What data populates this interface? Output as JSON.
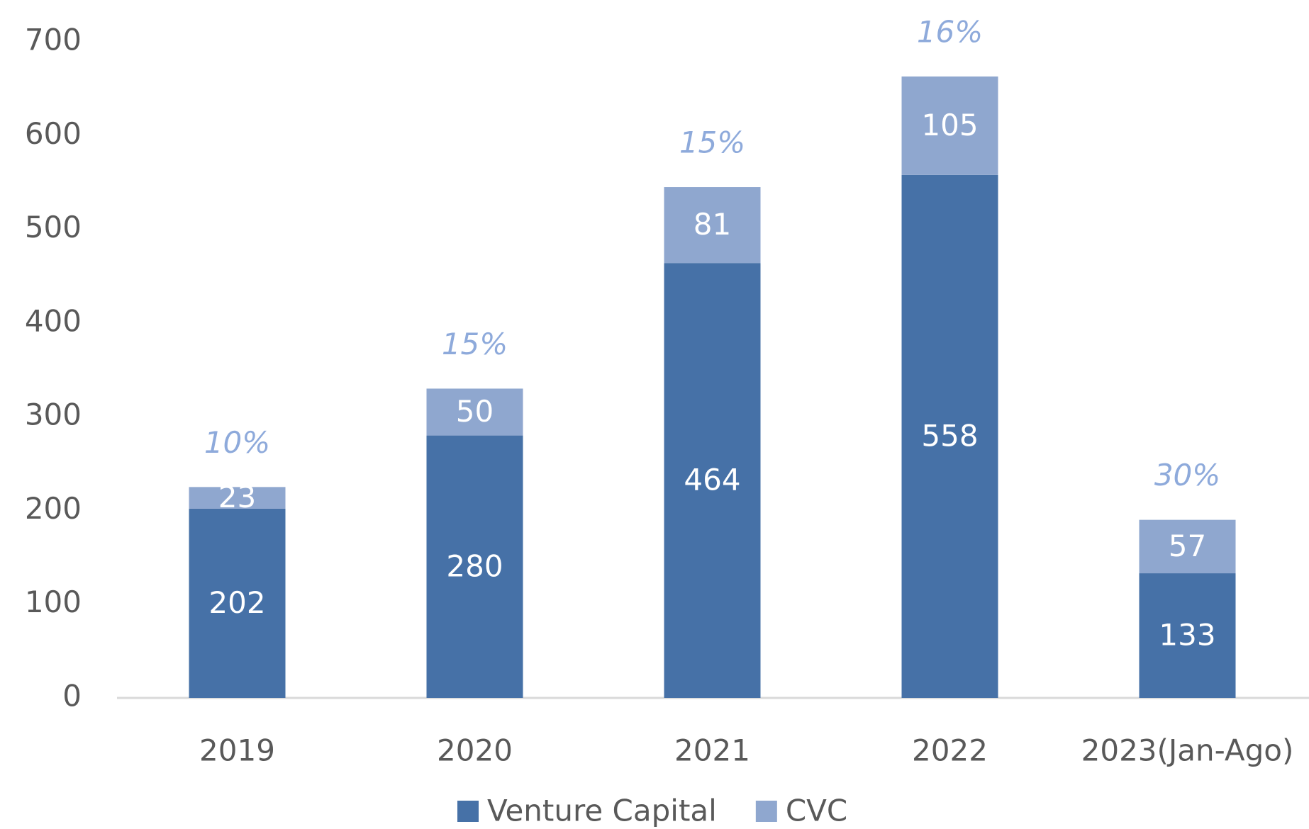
{
  "chart_data": {
    "type": "stacked_bar",
    "categories": [
      "2019",
      "2020",
      "2021",
      "2022",
      "2023(Jan-Ago)"
    ],
    "series": [
      {
        "name": "Venture Capital",
        "color": "#4671a7",
        "values": [
          202,
          280,
          464,
          558,
          133
        ]
      },
      {
        "name": "CVC",
        "color": "#8fa7cf",
        "values": [
          23,
          50,
          81,
          105,
          57
        ]
      }
    ],
    "annotations": [
      "10%",
      "15%",
      "15%",
      "16%",
      "30%"
    ],
    "annotation_color": "#8eaadb",
    "ylim": [
      0,
      700
    ],
    "yticks": [
      0,
      100,
      200,
      300,
      400,
      500,
      600,
      700
    ],
    "grid": false,
    "legend": "bottom"
  }
}
